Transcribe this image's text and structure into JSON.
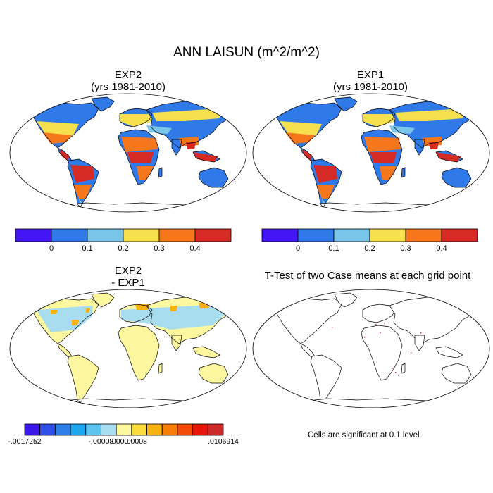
{
  "title": "ANN LAISUN (m^2/m^2)",
  "panels": {
    "exp2": {
      "title": "EXP2",
      "subtitle": "(yrs 1981-2010)"
    },
    "exp1": {
      "title": "EXP1",
      "subtitle": "(yrs 1981-2010)"
    },
    "diff": {
      "title": "EXP2",
      "subtitle": "- EXP1"
    },
    "ttest": {
      "title": "T-Test of two Case means at each grid point"
    }
  },
  "colorbar_main": {
    "colors": [
      "#4416f5",
      "#2f79e8",
      "#79c6ea",
      "#f6e04d",
      "#f6761c",
      "#d62a24"
    ],
    "labels": [
      "0",
      "0.1",
      "0.2",
      "0.3",
      "0.4"
    ]
  },
  "colorbar_diff": {
    "colors": [
      "#3b16e8",
      "#2f4fe6",
      "#2f7ee8",
      "#1ea6ef",
      "#5bc4ef",
      "#a8dcef",
      "#fdf7a0",
      "#f9dc3c",
      "#f7b20e",
      "#f77f08",
      "#f34a07",
      "#e6170a",
      "#cc2a2a"
    ],
    "labels": [
      "-.0017252",
      "-.00008",
      ".0000",
      ".00008",
      ".0106914"
    ]
  },
  "significance_note": "Cells are significant at 0.1 level",
  "map_colors": {
    "ocean": "#ffffff",
    "tropical": "#d62a24",
    "subtropical": "#f6761c",
    "temperate": "#f6e04d",
    "boreal": "#2f79e8",
    "sparse": "#79c6ea",
    "diff_base": "#fdf7a0",
    "diff_low": "#a8dcef",
    "diff_high": "#f7b20e",
    "signif": "#e21e8a"
  }
}
